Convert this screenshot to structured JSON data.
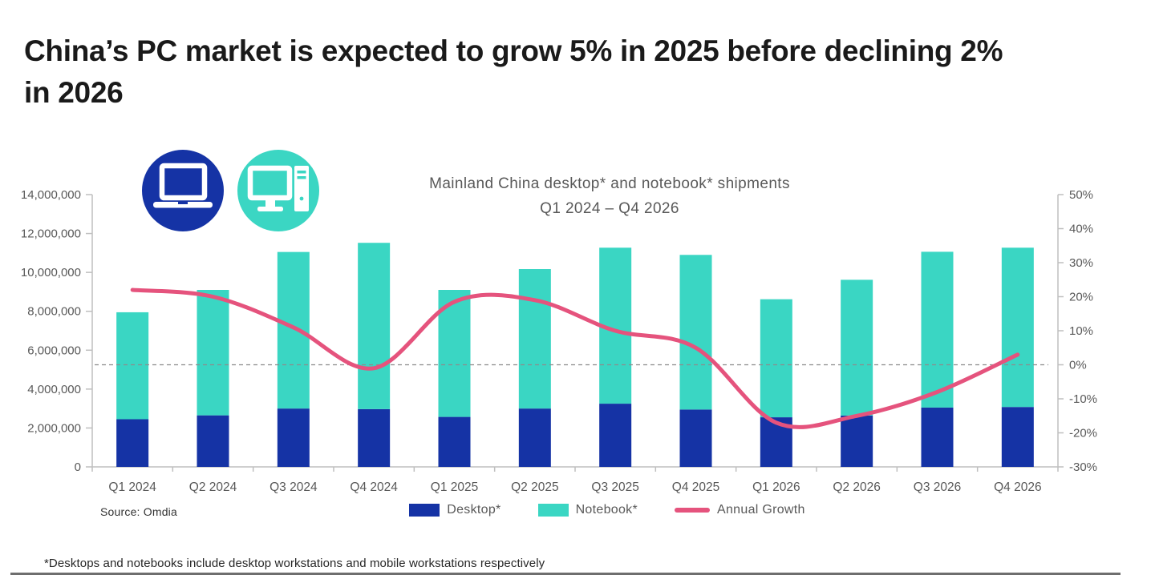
{
  "page": {
    "title_line1": "China’s PC market is expected to grow 5% in 2025 before declining 2%",
    "title_line2": "in 2026",
    "source_label": "Source: Omdia",
    "footnote": "*Desktops and notebooks include desktop workstations and mobile workstations respectively"
  },
  "icons": [
    {
      "name": "laptop-icon",
      "bg": "#1533A5"
    },
    {
      "name": "desktop-pc-icon",
      "bg": "#3BD6C3"
    }
  ],
  "chart_data": {
    "type": "bar+line",
    "title_line1": "Mainland China desktop* and notebook* shipments",
    "title_line2": "Q1 2024 – Q4 2026",
    "categories": [
      "Q1 2024",
      "Q2 2024",
      "Q3 2024",
      "Q4 2024",
      "Q1 2025",
      "Q2 2025",
      "Q3 2025",
      "Q4 2025",
      "Q1 2026",
      "Q2 2026",
      "Q3 2026",
      "Q4 2026"
    ],
    "series": [
      {
        "name": "Desktop*",
        "type": "bar",
        "stacked": true,
        "axis": "left",
        "color": "#1533A5",
        "values": [
          2450000,
          2650000,
          3000000,
          2970000,
          2570000,
          3000000,
          3250000,
          2950000,
          2550000,
          2640000,
          3050000,
          3080000
        ]
      },
      {
        "name": "Notebook*",
        "type": "bar",
        "stacked": true,
        "axis": "left",
        "color": "#3AD6C3",
        "values": [
          5500000,
          6450000,
          8050000,
          8550000,
          6530000,
          7170000,
          8020000,
          7950000,
          6070000,
          6980000,
          8010000,
          8190000
        ]
      },
      {
        "name": "Annual Growth",
        "type": "line",
        "axis": "right",
        "color": "#E5537D",
        "values": [
          22,
          20,
          11,
          -1,
          18.5,
          19,
          10,
          5,
          -17,
          -15,
          -8,
          3
        ]
      }
    ],
    "left_axis": {
      "min": 0,
      "max": 14000000,
      "step": 2000000,
      "tick_labels": [
        "0",
        "2,000,000",
        "4,000,000",
        "6,000,000",
        "8,000,000",
        "10,000,000",
        "12,000,000",
        "14,000,000"
      ]
    },
    "right_axis": {
      "min": -30,
      "max": 50,
      "step": 10,
      "tick_labels": [
        "-30%",
        "-20%",
        "-10%",
        "0%",
        "10%",
        "20%",
        "30%",
        "40%",
        "50%"
      ]
    },
    "zero_line": true,
    "grid": false,
    "legend_position": "bottom"
  }
}
